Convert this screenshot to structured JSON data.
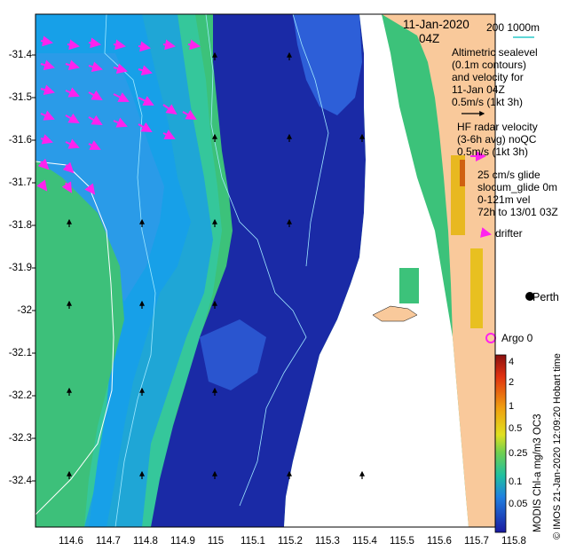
{
  "map": {
    "lat_ticks": [
      "-31.4",
      "-31.5",
      "-31.6",
      "-31.7",
      "-31.8",
      "-31.9",
      "-32",
      "-32.1",
      "-32.2",
      "-32.3",
      "-32.4"
    ],
    "lon_ticks": [
      "114.6",
      "114.7",
      "114.8",
      "114.9",
      "115",
      "115.1",
      "115.2",
      "115.3",
      "115.4",
      "115.5",
      "115.6",
      "115.7",
      "115.8"
    ],
    "date": "11-Jan-2020",
    "time": "04Z",
    "depth_legend": "200  1000m",
    "sealevel_note": [
      "Altimetric sealevel",
      "(0.1m contours)",
      "and velocity for",
      "11-Jan 04Z",
      "0.5m/s (1kt 3h)"
    ],
    "hf_note": [
      "HF radar velocity",
      "(3-6h avg) noQC",
      "0.5m/s (1kt 3h)"
    ],
    "glider_note": [
      "25 cm/s glide",
      "slocum_glide 0m",
      "0-121m vel",
      "72h to 13/01 03Z"
    ],
    "drifter_label": "drifter",
    "city_label": "Perth",
    "argo_label": "Argo 0",
    "colorbar_ticks": [
      "4",
      "2",
      "1",
      "0.5",
      "0.25",
      "0.1",
      "0.05"
    ],
    "colorbar_title": "MODIS Chl-a mg/m3 OC3",
    "credit": "© IMOS 21-Jan-2020 12:09:20 Hobart time",
    "colors": {
      "land": "#f9c99b",
      "deep_blue": "#1a1aa6",
      "mid_blue": "#2b6fe0",
      "cyan": "#1fb5e0",
      "green": "#3cc27a",
      "arrow_magenta": "#ff22ee"
    }
  }
}
